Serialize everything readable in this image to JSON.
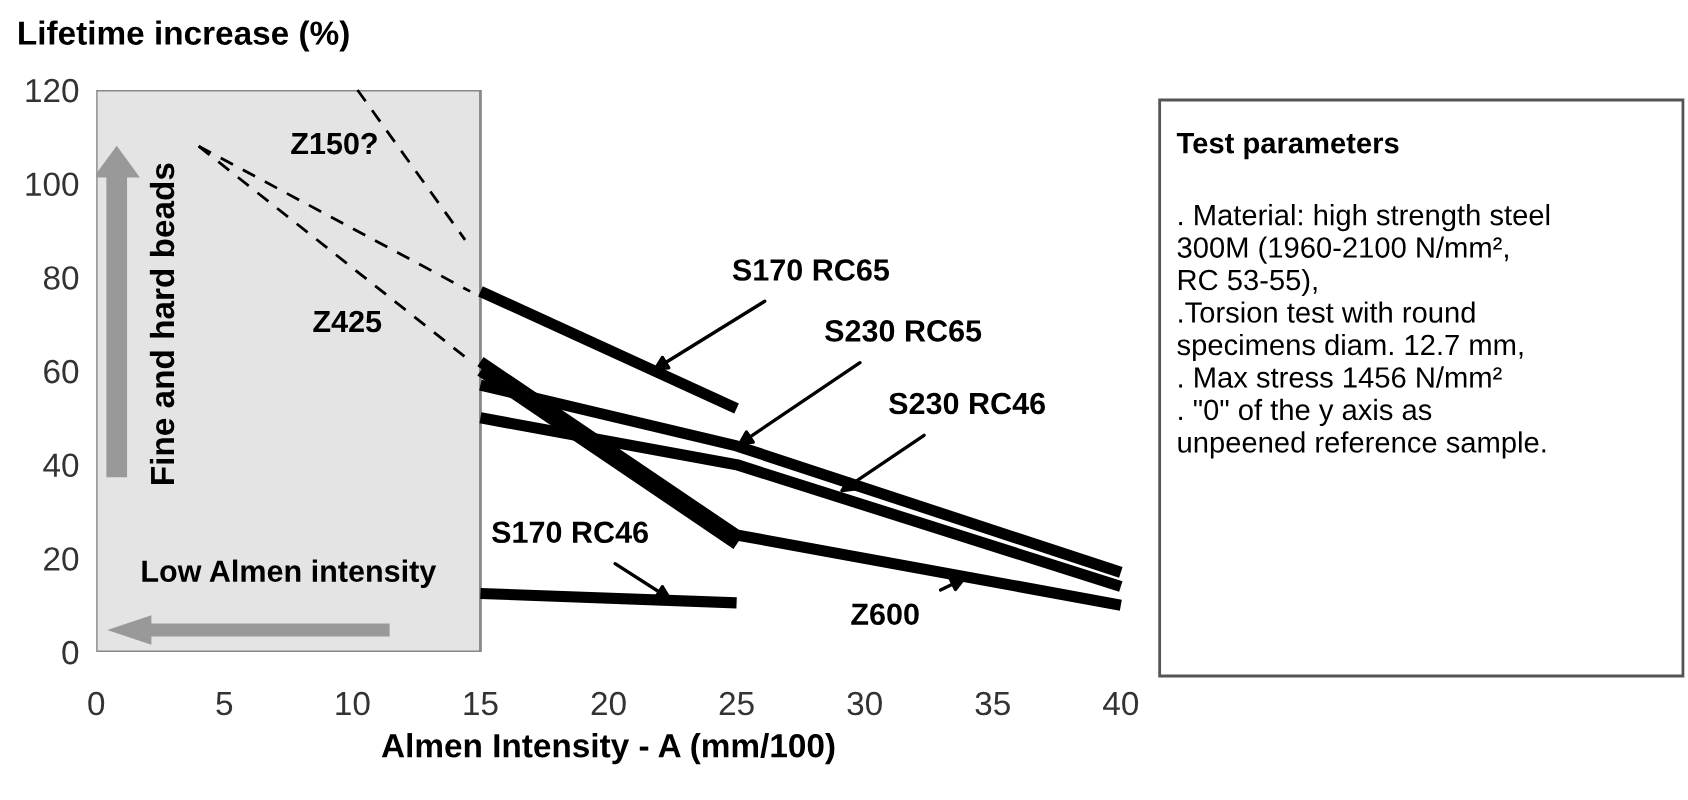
{
  "chart_data": {
    "type": "line",
    "ylabel": "Lifetime increase (%)",
    "xlabel": "Almen Intensity - A (mm/100)",
    "series": [
      {
        "color": "#000000",
        "x": [
          15,
          25
        ],
        "values": [
          77,
          52
        ]
      },
      {
        "color": "#000000",
        "x": [
          15,
          25,
          40
        ],
        "values": [
          57,
          44,
          17
        ]
      },
      {
        "color": "#000000",
        "x": [
          15,
          25,
          40
        ],
        "values": [
          50,
          40,
          14
        ]
      },
      {
        "color": "#000000",
        "x": [
          15,
          25
        ],
        "values": [
          60,
          23
        ]
      },
      {
        "color": "#000000",
        "x": [
          15,
          25,
          40
        ],
        "values": [
          62,
          25,
          10
        ]
      },
      {
        "color": "#000000",
        "x": [
          15,
          25
        ],
        "values": [
          12.5,
          10.5
        ]
      },
      {
        "color": "#000000",
        "line_style": "dashed",
        "x": [
          4,
          14.6
        ],
        "values": [
          108,
          77
        ]
      },
      {
        "color": "#000000",
        "line_style": "dashed",
        "x": [
          4,
          14.4
        ],
        "values": [
          108,
          63
        ]
      },
      {
        "color": "#000000",
        "line_style": "dashed",
        "x": [
          10.2,
          14.4
        ],
        "values": [
          120,
          88
        ]
      }
    ],
    "bands": [
      {
        "axis": "x",
        "from": 0,
        "to": 15,
        "color": "#e4e4e4"
      }
    ],
    "annotations": [
      {
        "text": "S170 RC65",
        "x": 21.7,
        "y": 60
      },
      {
        "text": "S230 RC65",
        "x": 25,
        "y": 44
      },
      {
        "text": "S230 RC46",
        "x": 29,
        "y": 34
      },
      {
        "text": "S170 RC46",
        "x": 22.5,
        "y": 11
      },
      {
        "text": "Z600",
        "x": 34,
        "y": 16
      },
      "Z425",
      "Z150?",
      "Fine and hard beads",
      "Low Almen intensity",
      "Test parameters",
      ". Material: high strength steel\n300M (1960-2100 N/mm²,\nRC 53-55),\n.Torsion test with round\nspecimens diam. 12.7 mm,\n. Max stress 1456 N/mm²\n. \"0\" of the y axis as\nunpeened reference sample."
    ],
    "xlim": [
      0,
      40
    ],
    "ylim": [
      0,
      120
    ],
    "xticks": [
      0,
      5,
      10,
      15,
      20,
      25,
      30,
      35,
      40
    ],
    "yticks": [
      0,
      20,
      40,
      60,
      80,
      100,
      120
    ],
    "line_style": "solid",
    "grid": false,
    "legend": false
  }
}
